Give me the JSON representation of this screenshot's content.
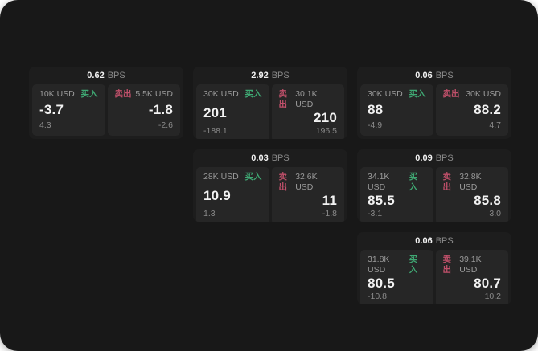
{
  "panel": {
    "bg": "#181818",
    "card_bg": "#1d1d1d",
    "tile_bg": "#262626"
  },
  "colors": {
    "buy": "#3fa873",
    "sell": "#c0506a",
    "text_strong": "#f2f2f2",
    "text_mid": "#9a9a9a",
    "text_dim": "#8a8a8a",
    "page_bg": "#ffffff"
  },
  "labels": {
    "bps": "BPS",
    "buy": "买入",
    "sell": "卖出"
  },
  "cards": [
    {
      "row": 1,
      "col": 1,
      "bps": "0.62",
      "buy": {
        "amount": "10K USD",
        "price": "-3.7",
        "delta": "4.3"
      },
      "sell": {
        "amount": "5.5K USD",
        "price": "-1.8",
        "delta": "-2.6"
      }
    },
    {
      "row": 1,
      "col": 2,
      "bps": "2.92",
      "buy": {
        "amount": "30K USD",
        "price": "201",
        "delta": "-188.1"
      },
      "sell": {
        "amount": "30.1K USD",
        "price": "210",
        "delta": "196.5"
      }
    },
    {
      "row": 1,
      "col": 3,
      "bps": "0.06",
      "buy": {
        "amount": "30K USD",
        "price": "88",
        "delta": "-4.9"
      },
      "sell": {
        "amount": "30K USD",
        "price": "88.2",
        "delta": "4.7"
      }
    },
    {
      "row": 2,
      "col": 2,
      "bps": "0.03",
      "buy": {
        "amount": "28K USD",
        "price": "10.9",
        "delta": "1.3"
      },
      "sell": {
        "amount": "32.6K USD",
        "price": "11",
        "delta": "-1.8"
      }
    },
    {
      "row": 2,
      "col": 3,
      "bps": "0.09",
      "buy": {
        "amount": "34.1K USD",
        "price": "85.5",
        "delta": "-3.1"
      },
      "sell": {
        "amount": "32.8K USD",
        "price": "85.8",
        "delta": "3.0"
      }
    },
    {
      "row": 3,
      "col": 3,
      "bps": "0.06",
      "buy": {
        "amount": "31.8K USD",
        "price": "80.5",
        "delta": "-10.8"
      },
      "sell": {
        "amount": "39.1K USD",
        "price": "80.7",
        "delta": "10.2"
      }
    }
  ]
}
